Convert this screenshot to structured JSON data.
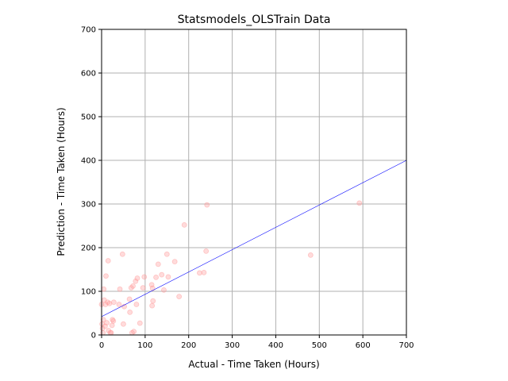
{
  "chart_data": {
    "type": "scatter",
    "title": "Statsmodels_OLSTrain Data",
    "xlabel": "Actual - Time Taken (Hours)",
    "ylabel": "Prediction - Time Taken (Hours)",
    "xlim": [
      0,
      700
    ],
    "ylim": [
      0,
      700
    ],
    "xticks": [
      0,
      100,
      200,
      300,
      400,
      500,
      600,
      700
    ],
    "yticks": [
      0,
      100,
      200,
      300,
      400,
      500,
      600,
      700
    ],
    "grid": true,
    "colors": {
      "points": "#ff9999",
      "fit_line": "#0000ff",
      "grid": "#b0b0b0"
    },
    "fit_line": {
      "x": [
        0,
        700
      ],
      "y": [
        42,
        400
      ]
    },
    "points": [
      {
        "x": 0,
        "y": 70
      },
      {
        "x": 1,
        "y": 25
      },
      {
        "x": 2,
        "y": 15
      },
      {
        "x": 3,
        "y": 5
      },
      {
        "x": 4,
        "y": 35
      },
      {
        "x": 5,
        "y": 105
      },
      {
        "x": 6,
        "y": 80
      },
      {
        "x": 8,
        "y": 20
      },
      {
        "x": 9,
        "y": 70
      },
      {
        "x": 10,
        "y": 135
      },
      {
        "x": 12,
        "y": 28
      },
      {
        "x": 14,
        "y": 75
      },
      {
        "x": 15,
        "y": 170
      },
      {
        "x": 16,
        "y": 10
      },
      {
        "x": 18,
        "y": 72
      },
      {
        "x": 20,
        "y": 5
      },
      {
        "x": 22,
        "y": 5
      },
      {
        "x": 24,
        "y": 22
      },
      {
        "x": 25,
        "y": 35
      },
      {
        "x": 27,
        "y": 32
      },
      {
        "x": 28,
        "y": 75
      },
      {
        "x": 40,
        "y": 70
      },
      {
        "x": 42,
        "y": 105
      },
      {
        "x": 48,
        "y": 185
      },
      {
        "x": 50,
        "y": 25
      },
      {
        "x": 52,
        "y": 65
      },
      {
        "x": 64,
        "y": 82
      },
      {
        "x": 65,
        "y": 52
      },
      {
        "x": 68,
        "y": 108
      },
      {
        "x": 70,
        "y": 5
      },
      {
        "x": 72,
        "y": 112
      },
      {
        "x": 74,
        "y": 8
      },
      {
        "x": 78,
        "y": 123
      },
      {
        "x": 80,
        "y": 70
      },
      {
        "x": 82,
        "y": 130
      },
      {
        "x": 88,
        "y": 27
      },
      {
        "x": 95,
        "y": 108
      },
      {
        "x": 98,
        "y": 133
      },
      {
        "x": 115,
        "y": 115
      },
      {
        "x": 116,
        "y": 67
      },
      {
        "x": 117,
        "y": 107
      },
      {
        "x": 118,
        "y": 78
      },
      {
        "x": 125,
        "y": 132
      },
      {
        "x": 130,
        "y": 162
      },
      {
        "x": 138,
        "y": 138
      },
      {
        "x": 143,
        "y": 103
      },
      {
        "x": 150,
        "y": 185
      },
      {
        "x": 153,
        "y": 133
      },
      {
        "x": 168,
        "y": 168
      },
      {
        "x": 178,
        "y": 88
      },
      {
        "x": 190,
        "y": 252
      },
      {
        "x": 225,
        "y": 142
      },
      {
        "x": 235,
        "y": 143
      },
      {
        "x": 240,
        "y": 192
      },
      {
        "x": 242,
        "y": 298
      },
      {
        "x": 480,
        "y": 183
      },
      {
        "x": 592,
        "y": 302
      }
    ]
  }
}
